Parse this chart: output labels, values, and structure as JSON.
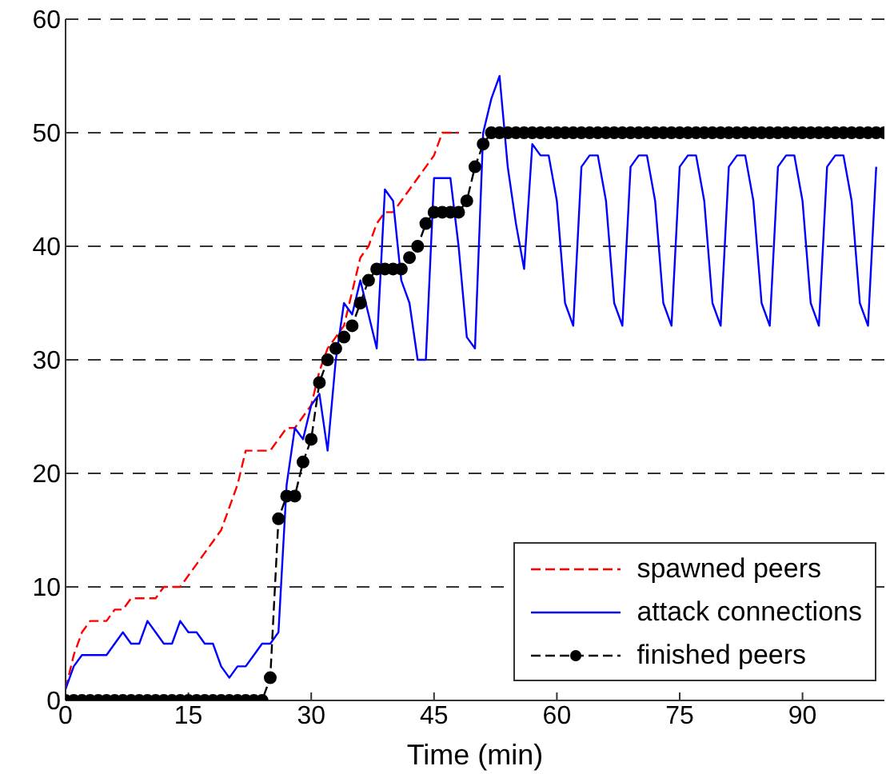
{
  "chart_data": {
    "type": "line",
    "xlabel": "Time (min)",
    "xlim": [
      0,
      100
    ],
    "xticks": [
      0,
      15,
      30,
      45,
      60,
      75,
      90
    ],
    "ylim": [
      0,
      60
    ],
    "yticks": [
      0,
      10,
      20,
      30,
      40,
      50,
      60
    ],
    "grid": "y",
    "legend": "bottom right",
    "series": [
      {
        "name": "spawned peers",
        "color": "#ff0000",
        "line_style": "dashed",
        "marker": "none",
        "x": [
          0,
          1,
          2,
          3,
          4,
          5,
          6,
          7,
          8,
          9,
          10,
          11,
          12,
          13,
          14,
          15,
          16,
          17,
          18,
          19,
          20,
          21,
          22,
          23,
          24,
          25,
          26,
          27,
          28,
          29,
          30,
          31,
          32,
          33,
          34,
          35,
          36,
          37,
          38,
          39,
          40,
          41,
          42,
          43,
          44,
          45,
          46,
          47,
          48
        ],
        "values": [
          1,
          4,
          6,
          7,
          7,
          7,
          8,
          8,
          9,
          9,
          9,
          9,
          10,
          10,
          10,
          11,
          12,
          13,
          14,
          15,
          17,
          19,
          22,
          22,
          22,
          22,
          23,
          24,
          24,
          25,
          26,
          29,
          31,
          32,
          33,
          36,
          39,
          40,
          42,
          43,
          43,
          44,
          45,
          46,
          47,
          48,
          50,
          50,
          50
        ]
      },
      {
        "name": "attack connections",
        "color": "#0000ff",
        "line_style": "solid",
        "marker": "none",
        "x": [
          0,
          1,
          2,
          3,
          4,
          5,
          6,
          7,
          8,
          9,
          10,
          11,
          12,
          13,
          14,
          15,
          16,
          17,
          18,
          19,
          20,
          21,
          22,
          23,
          24,
          25,
          26,
          27,
          28,
          29,
          30,
          31,
          32,
          33,
          34,
          35,
          36,
          37,
          38,
          39,
          40,
          41,
          42,
          43,
          44,
          45,
          46,
          47,
          48,
          49,
          50,
          51,
          52,
          53,
          54,
          55,
          56,
          57,
          58,
          59,
          60,
          61,
          62,
          63,
          64,
          65,
          66,
          67,
          68,
          69,
          70,
          71,
          72,
          73,
          74,
          75,
          76,
          77,
          78,
          79,
          80,
          81,
          82,
          83,
          84,
          85,
          86,
          87,
          88,
          89,
          90,
          91,
          92,
          93,
          94,
          95,
          96,
          97,
          98,
          99
        ],
        "values": [
          1,
          3,
          4,
          4,
          4,
          4,
          5,
          6,
          5,
          5,
          7,
          6,
          5,
          5,
          7,
          6,
          6,
          5,
          5,
          3,
          2,
          3,
          3,
          4,
          5,
          5,
          6,
          19,
          24,
          23,
          26,
          27,
          22,
          30,
          35,
          34,
          37,
          34,
          31,
          45,
          44,
          37,
          35,
          30,
          30,
          46,
          46,
          46,
          40,
          32,
          31,
          50,
          53,
          55,
          47,
          42,
          38,
          49,
          48,
          48,
          44,
          35,
          33,
          47,
          48,
          48,
          44,
          35,
          33,
          47,
          48,
          48,
          44,
          35,
          33,
          47,
          48,
          48,
          44,
          35,
          33,
          47,
          48,
          48,
          44,
          35,
          33,
          47,
          48,
          48,
          44,
          35,
          33,
          47,
          48,
          48,
          44,
          35,
          33,
          47
        ]
      },
      {
        "name": "finished peers",
        "color": "#000000",
        "line_style": "dashed",
        "marker": "circle",
        "x": [
          0,
          1,
          2,
          3,
          4,
          5,
          6,
          7,
          8,
          9,
          10,
          11,
          12,
          13,
          14,
          15,
          16,
          17,
          18,
          19,
          20,
          21,
          22,
          23,
          24,
          25,
          26,
          27,
          28,
          29,
          30,
          31,
          32,
          33,
          34,
          35,
          36,
          37,
          38,
          39,
          40,
          41,
          42,
          43,
          44,
          45,
          46,
          47,
          48,
          49,
          50,
          51,
          52,
          53,
          54,
          55,
          56,
          57,
          58,
          59,
          60,
          61,
          62,
          63,
          64,
          65,
          66,
          67,
          68,
          69,
          70,
          71,
          72,
          73,
          74,
          75,
          76,
          77,
          78,
          79,
          80,
          81,
          82,
          83,
          84,
          85,
          86,
          87,
          88,
          89,
          90,
          91,
          92,
          93,
          94,
          95,
          96,
          97,
          98,
          99,
          100
        ],
        "values": [
          0,
          0,
          0,
          0,
          0,
          0,
          0,
          0,
          0,
          0,
          0,
          0,
          0,
          0,
          0,
          0,
          0,
          0,
          0,
          0,
          0,
          0,
          0,
          0,
          0,
          2,
          16,
          18,
          18,
          21,
          23,
          28,
          30,
          31,
          32,
          33,
          35,
          37,
          38,
          38,
          38,
          38,
          39,
          40,
          42,
          43,
          43,
          43,
          43,
          44,
          47,
          49,
          50,
          50,
          50,
          50,
          50,
          50,
          50,
          50,
          50,
          50,
          50,
          50,
          50,
          50,
          50,
          50,
          50,
          50,
          50,
          50,
          50,
          50,
          50,
          50,
          50,
          50,
          50,
          50,
          50,
          50,
          50,
          50,
          50,
          50,
          50,
          50,
          50,
          50,
          50,
          50,
          50,
          50,
          50,
          50,
          50,
          50,
          50,
          50,
          50
        ]
      }
    ]
  }
}
